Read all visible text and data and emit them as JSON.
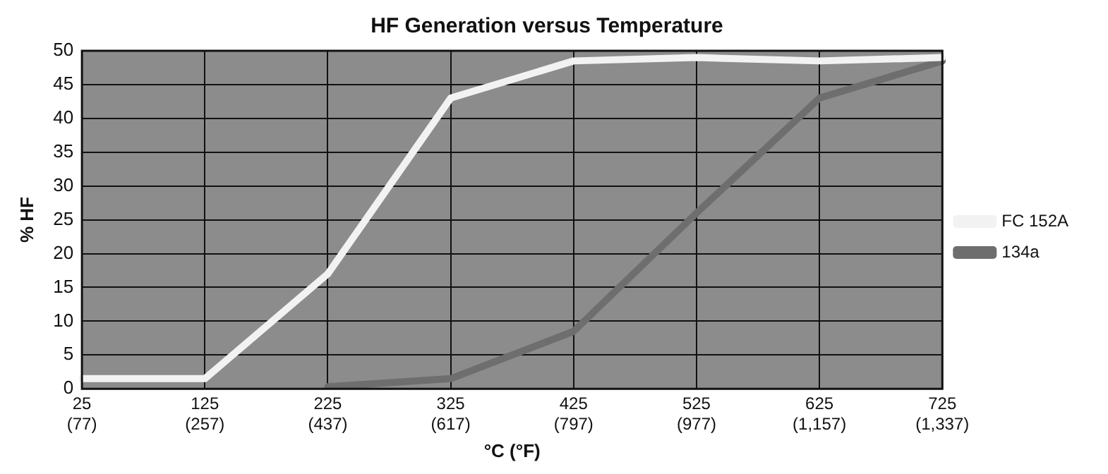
{
  "chart_data": {
    "type": "line",
    "title": "HF Generation versus Temperature",
    "xlabel": "°C (°F)",
    "ylabel": "% HF",
    "categories": [
      "25 (77)",
      "125 (257)",
      "225 (437)",
      "325 (617)",
      "425 (797)",
      "525 (977)",
      "625 (1,157)",
      "725 (1,337)"
    ],
    "series": [
      {
        "name": "FC 152A",
        "color": "#f2f2f2",
        "values": [
          1.5,
          1.5,
          17,
          43,
          48.5,
          49,
          48.5,
          49
        ]
      },
      {
        "name": "134a",
        "color": "#6e6e6e",
        "values": [
          null,
          null,
          0.3,
          1.5,
          8.5,
          26,
          43,
          48.5
        ]
      }
    ],
    "ylim": [
      0,
      50
    ],
    "yticks": [
      0,
      5,
      10,
      15,
      20,
      25,
      30,
      35,
      40,
      45,
      50
    ],
    "grid": true,
    "legend": "right",
    "marker": "none",
    "line_style": "solid"
  }
}
